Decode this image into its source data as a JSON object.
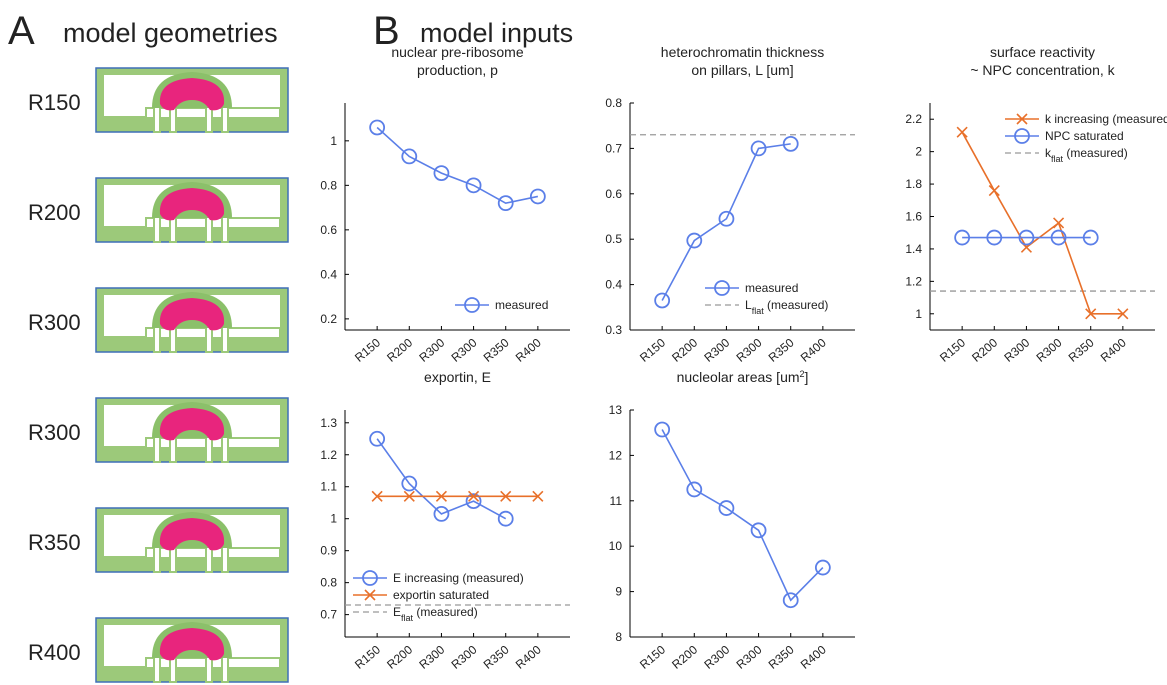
{
  "panels": [
    {
      "letter": "A",
      "title": "model geometries",
      "labels": [
        "R150",
        "R200",
        "R300",
        "R300",
        "R350",
        "R400"
      ]
    },
    {
      "letter": "B",
      "title": "model inputs"
    }
  ],
  "chart_data": [
    {
      "type": "line",
      "title": [
        "nuclear pre-ribosome",
        "production, p"
      ],
      "categories": [
        "R150",
        "R200",
        "R300",
        "R300",
        "R350",
        "R400"
      ],
      "series": [
        {
          "name": "measured",
          "color": "#5b7fe8",
          "marker": "o",
          "values": [
            1.06,
            0.93,
            0.855,
            0.8,
            0.72,
            0.75
          ]
        }
      ],
      "ylim": [
        0.15,
        1.17
      ],
      "yticks": [
        0.2,
        0.4,
        0.6,
        0.8,
        1
      ],
      "legend": "lower right"
    },
    {
      "type": "line",
      "title": [
        "heterochromatin thickness",
        "on pillars, L [um]"
      ],
      "categories": [
        "R150",
        "R200",
        "R300",
        "R300",
        "R350",
        "R400"
      ],
      "series": [
        {
          "name": "measured",
          "color": "#5b7fe8",
          "marker": "o",
          "values": [
            0.365,
            0.497,
            0.545,
            0.7,
            0.71,
            null
          ]
        }
      ],
      "hlines": [
        {
          "value": 0.73,
          "color": "#999999",
          "name": [
            "L",
            "flat",
            " (measured)"
          ]
        }
      ],
      "ylim": [
        0.3,
        0.8
      ],
      "yticks": [
        0.3,
        0.4,
        0.5,
        0.6,
        0.7,
        0.8
      ],
      "legend": "lower right"
    },
    {
      "type": "line",
      "title": [
        "surface reactivity",
        "~ NPC concentration, k"
      ],
      "categories": [
        "R150",
        "R200",
        "R300",
        "R300",
        "R350",
        "R400"
      ],
      "series": [
        {
          "name": "k increasing (measured)",
          "color": "#e8702a",
          "marker": "x",
          "values": [
            2.12,
            1.76,
            1.41,
            1.56,
            1.0,
            1.0
          ]
        },
        {
          "name": "NPC saturated",
          "color": "#5b7fe8",
          "marker": "o",
          "values": [
            1.47,
            1.47,
            1.47,
            1.47,
            1.47,
            null
          ]
        }
      ],
      "hlines": [
        {
          "value": 1.14,
          "color": "#999999",
          "name": [
            "k",
            "flat",
            " (measured)"
          ]
        }
      ],
      "ylim": [
        0.9,
        2.3
      ],
      "yticks": [
        1,
        1.2,
        1.4,
        1.6,
        1.8,
        2,
        2.2
      ],
      "legend": "upper right"
    },
    {
      "type": "line",
      "title": [
        "exportin, E"
      ],
      "categories": [
        "R150",
        "R200",
        "R300",
        "R300",
        "R350",
        "R400"
      ],
      "series": [
        {
          "name": "E increasing (measured)",
          "color": "#5b7fe8",
          "marker": "o",
          "values": [
            1.25,
            1.11,
            1.015,
            1.055,
            1.0,
            null
          ]
        },
        {
          "name": "exportin saturated",
          "color": "#e8702a",
          "marker": "x",
          "values": [
            1.07,
            1.07,
            1.07,
            1.07,
            1.07,
            1.07
          ]
        }
      ],
      "hlines": [
        {
          "value": 0.73,
          "color": "#999999",
          "name": [
            "E",
            "flat",
            " (measured)"
          ]
        }
      ],
      "ylim": [
        0.63,
        1.34
      ],
      "yticks": [
        0.7,
        0.8,
        0.9,
        1,
        1.1,
        1.2,
        1.3
      ],
      "legend": "lower left"
    },
    {
      "type": "line",
      "title": [
        [
          "nucleolar areas [um",
          "2",
          "]"
        ]
      ],
      "categories": [
        "R150",
        "R200",
        "R300",
        "R300",
        "R350",
        "R400"
      ],
      "series": [
        {
          "color": "#5b7fe8",
          "marker": "o",
          "values": [
            12.57,
            11.25,
            10.84,
            10.35,
            8.81,
            9.53
          ]
        }
      ],
      "ylim": [
        8,
        13
      ],
      "yticks": [
        8,
        9,
        10,
        11,
        12,
        13
      ]
    }
  ]
}
